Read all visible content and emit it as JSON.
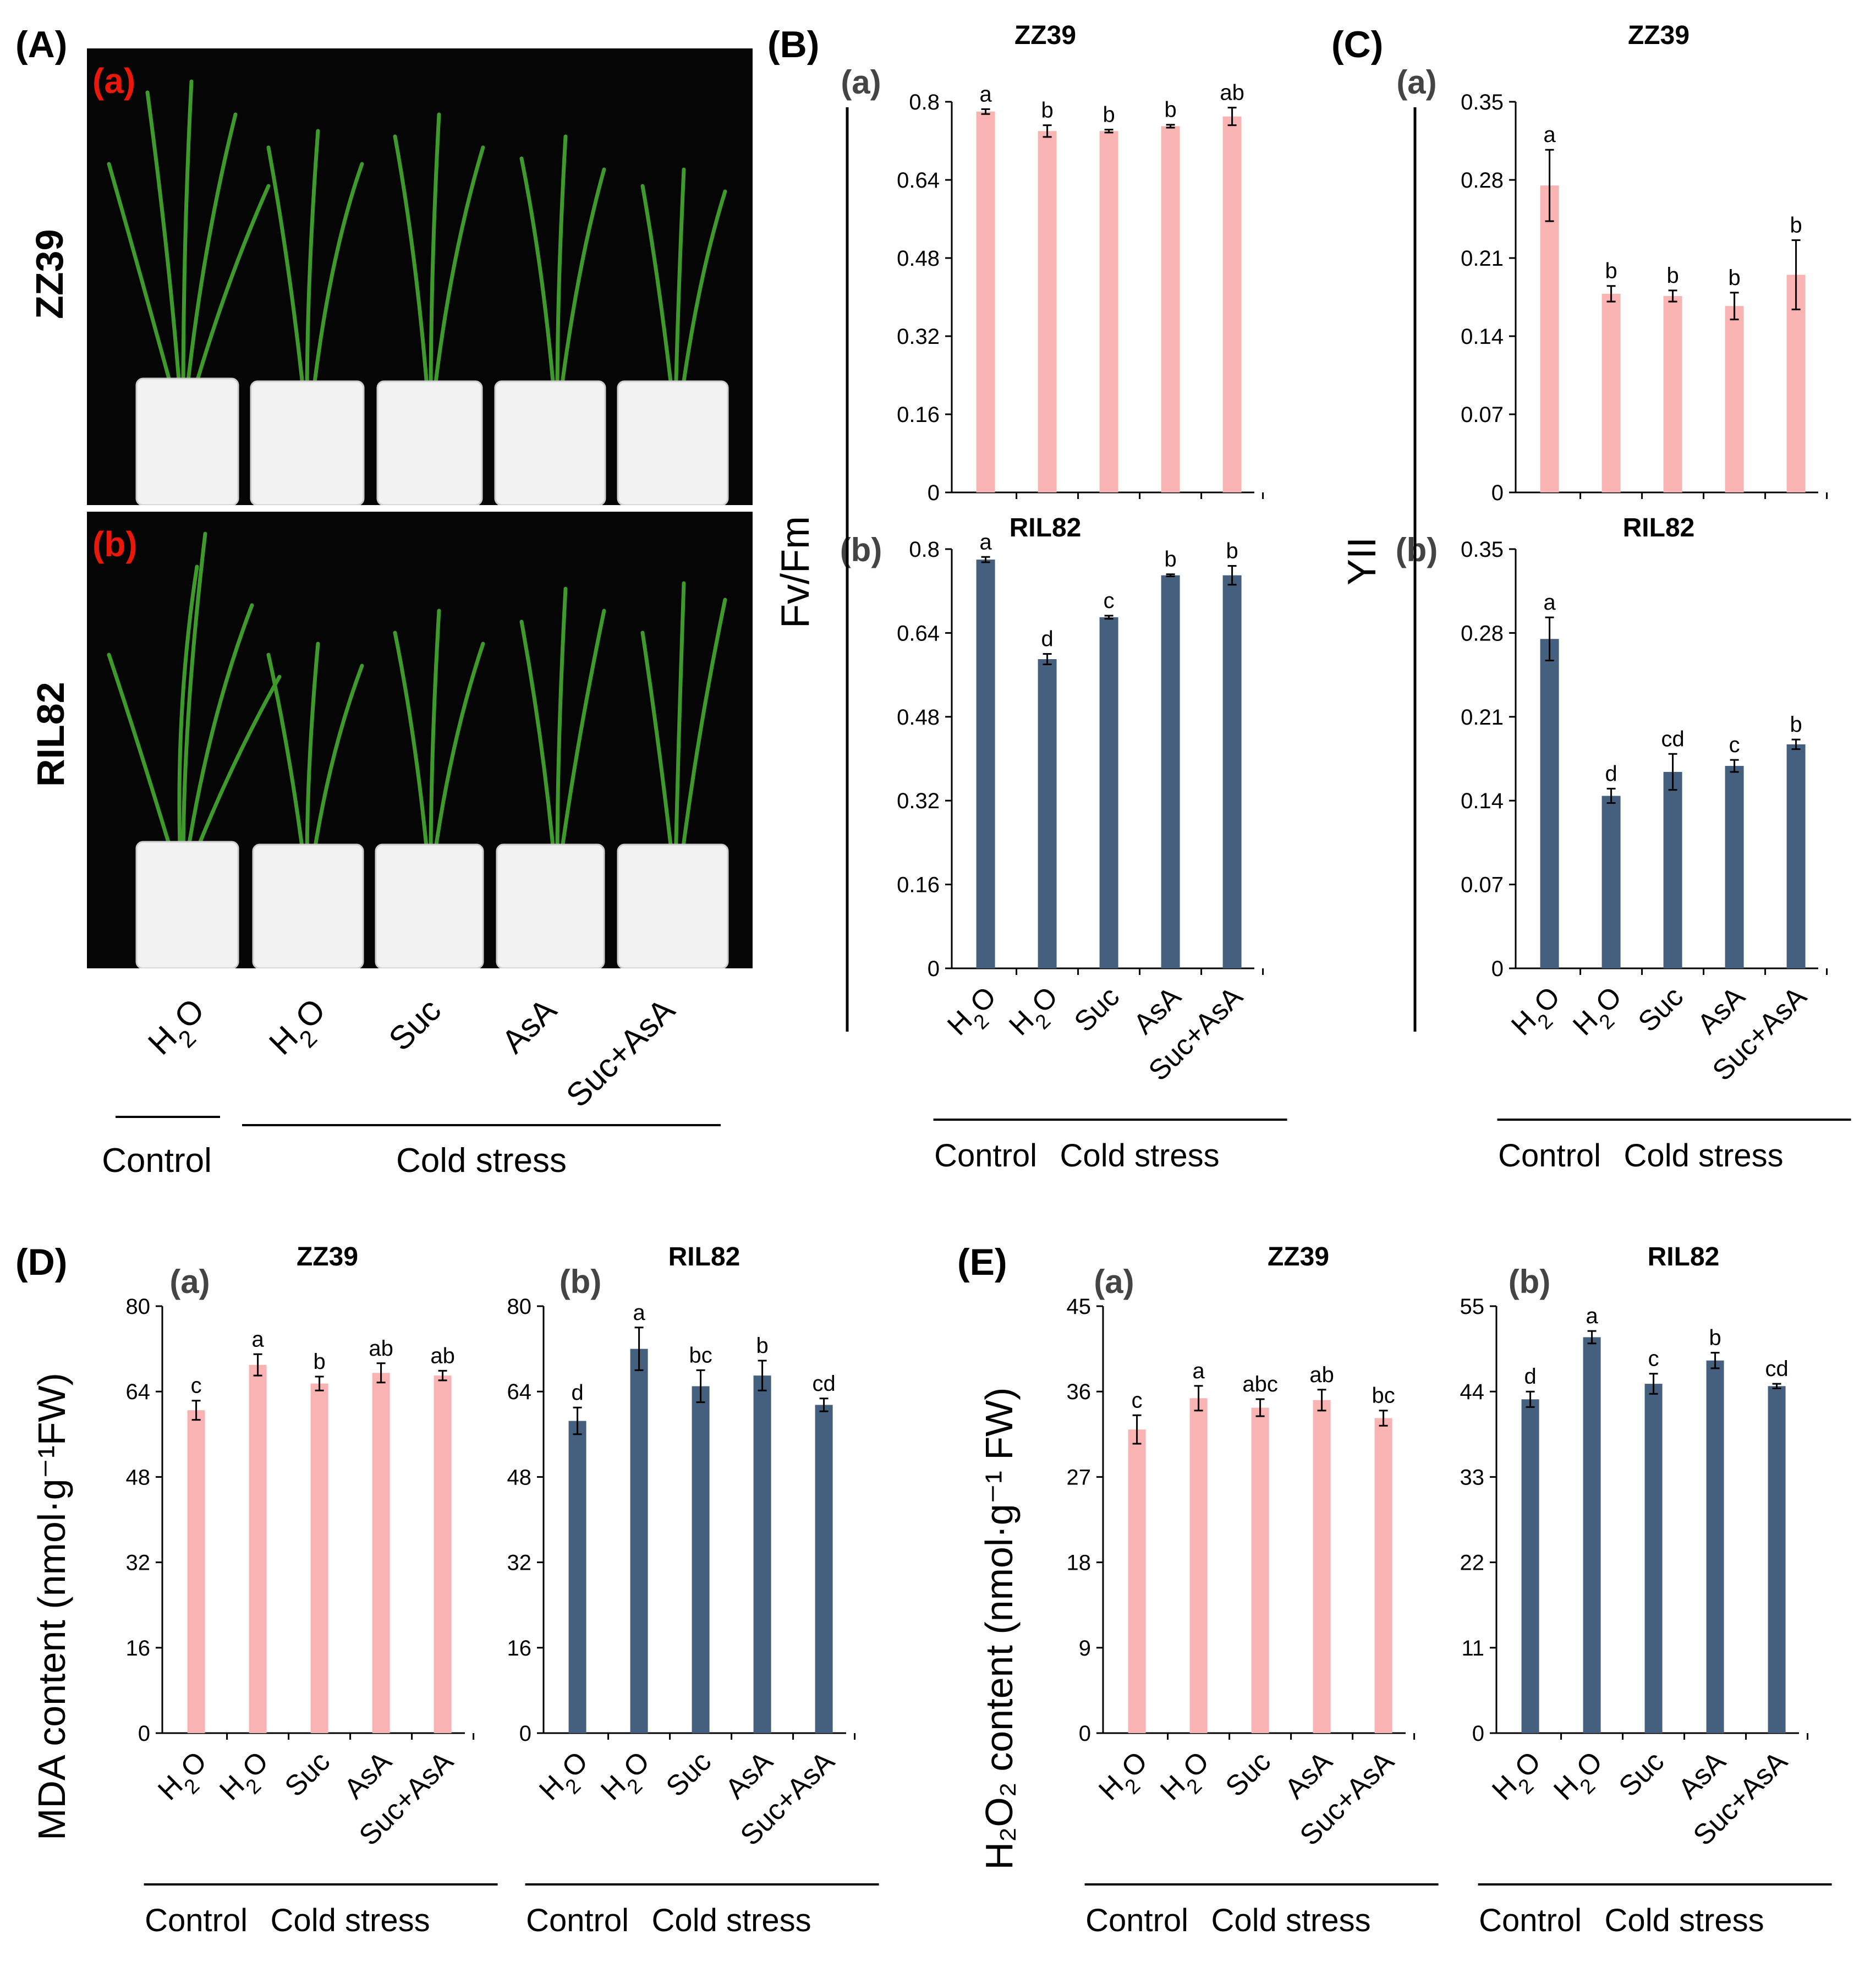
{
  "figure": {
    "panel_letters": [
      "(A)",
      "(B)",
      "(C)",
      "(D)",
      "(E)"
    ],
    "photo": {
      "tags": [
        "(a)",
        "(b)"
      ],
      "varieties": [
        "ZZ39",
        "RIL82"
      ],
      "treatments": [
        "H2O",
        "H2O",
        "Suc",
        "AsA",
        "Suc+AsA"
      ],
      "groups": [
        "Control",
        "Cold stress"
      ]
    },
    "colors": {
      "pink": "#F9B3B3",
      "blue": "#44607E",
      "red_tag": "#E8190B",
      "photo_bg": "#050505"
    }
  },
  "chart_data": [
    {
      "id": "B-a",
      "type": "bar",
      "panel": "(B)",
      "subpanel": "(a)",
      "title": "ZZ39",
      "ylabel": "Fv/Fm",
      "ylim": [
        0,
        0.8
      ],
      "yticks": [
        "0",
        "0.16",
        "0.32",
        "0.48",
        "0.64",
        "0.8"
      ],
      "categories": [
        "H2O",
        "H2O",
        "Suc",
        "AsA",
        "Suc+AsA"
      ],
      "values": [
        0.78,
        0.74,
        0.74,
        0.75,
        0.77
      ],
      "errors": [
        0.005,
        0.012,
        0.003,
        0.003,
        0.018
      ],
      "letters": [
        "a",
        "b",
        "b",
        "b",
        "ab"
      ],
      "color": "#F9B3B3",
      "groups": [
        "Control",
        "Cold stress"
      ]
    },
    {
      "id": "B-b",
      "type": "bar",
      "panel": "",
      "subpanel": "(b)",
      "title": "RIL82",
      "ylabel": "",
      "ylim": [
        0,
        0.8
      ],
      "yticks": [
        "0",
        "0.16",
        "0.32",
        "0.48",
        "0.64",
        "0.8"
      ],
      "categories": [
        "H2O",
        "H2O",
        "Suc",
        "AsA",
        "Suc+AsA"
      ],
      "values": [
        0.78,
        0.59,
        0.67,
        0.75,
        0.75
      ],
      "errors": [
        0.005,
        0.01,
        0.003,
        0.002,
        0.018
      ],
      "letters": [
        "a",
        "d",
        "c",
        "b",
        "b"
      ],
      "color": "#44607E",
      "groups": [
        "Control",
        "Cold stress"
      ]
    },
    {
      "id": "C-a",
      "type": "bar",
      "panel": "(C)",
      "subpanel": "(a)",
      "title": "ZZ39",
      "ylabel": "YII",
      "ylim": [
        0,
        0.35
      ],
      "yticks": [
        "0",
        "0.07",
        "0.14",
        "0.21",
        "0.28",
        "0.35"
      ],
      "categories": [
        "H2O",
        "H2O",
        "Suc",
        "AsA",
        "Suc+AsA"
      ],
      "values": [
        0.275,
        0.178,
        0.176,
        0.167,
        0.195
      ],
      "errors": [
        0.032,
        0.007,
        0.005,
        0.012,
        0.031
      ],
      "letters": [
        "a",
        "b",
        "b",
        "b",
        "b"
      ],
      "color": "#F9B3B3",
      "groups": [
        "Control",
        "Cold stress"
      ]
    },
    {
      "id": "C-b",
      "type": "bar",
      "panel": "",
      "subpanel": "(b)",
      "title": "RIL82",
      "ylabel": "",
      "ylim": [
        0,
        0.35
      ],
      "yticks": [
        "0",
        "0.07",
        "0.14",
        "0.21",
        "0.28",
        "0.35"
      ],
      "categories": [
        "H2O",
        "H2O",
        "Suc",
        "AsA",
        "Suc+AsA"
      ],
      "values": [
        0.275,
        0.144,
        0.164,
        0.169,
        0.187
      ],
      "errors": [
        0.018,
        0.006,
        0.015,
        0.005,
        0.004
      ],
      "letters": [
        "a",
        "d",
        "cd",
        "c",
        "b"
      ],
      "color": "#44607E",
      "groups": [
        "Control",
        "Cold stress"
      ]
    },
    {
      "id": "D-a",
      "type": "bar",
      "panel": "(D)",
      "subpanel": "(a)",
      "title": "ZZ39",
      "ylabel": "MDA content (nmol·g⁻¹FW)",
      "ylim": [
        0,
        80
      ],
      "yticks": [
        "0",
        "16",
        "32",
        "48",
        "64",
        "80"
      ],
      "categories": [
        "H2O",
        "H2O",
        "Suc",
        "AsA",
        "Suc+AsA"
      ],
      "values": [
        60.5,
        69.0,
        65.5,
        67.5,
        67.0
      ],
      "errors": [
        1.8,
        2.0,
        1.3,
        1.8,
        0.9
      ],
      "letters": [
        "c",
        "a",
        "b",
        "ab",
        "ab"
      ],
      "color": "#F9B3B3",
      "groups": [
        "Control",
        "Cold stress"
      ]
    },
    {
      "id": "D-b",
      "type": "bar",
      "panel": "",
      "subpanel": "(b)",
      "title": "RIL82",
      "ylabel": "",
      "ylim": [
        0,
        80
      ],
      "yticks": [
        "0",
        "16",
        "32",
        "48",
        "64",
        "80"
      ],
      "categories": [
        "H2O",
        "H2O",
        "Suc",
        "AsA",
        "Suc+AsA"
      ],
      "values": [
        58.5,
        72.0,
        65.0,
        67.0,
        61.5
      ],
      "errors": [
        2.5,
        4.0,
        3.0,
        2.8,
        1.2
      ],
      "letters": [
        "d",
        "a",
        "bc",
        "b",
        "cd"
      ],
      "color": "#44607E",
      "groups": [
        "Control",
        "Cold stress"
      ]
    },
    {
      "id": "E-a",
      "type": "bar",
      "panel": "(E)",
      "subpanel": "(a)",
      "title": "ZZ39",
      "ylabel": "H₂O₂ content (nmol·g⁻¹ FW)",
      "ylim": [
        0,
        45
      ],
      "yticks": [
        "0",
        "9",
        "18",
        "27",
        "36",
        "45"
      ],
      "categories": [
        "H2O",
        "H2O",
        "Suc",
        "AsA",
        "Suc+AsA"
      ],
      "values": [
        32.0,
        35.3,
        34.3,
        35.1,
        33.2
      ],
      "errors": [
        1.5,
        1.3,
        0.9,
        1.1,
        0.8
      ],
      "letters": [
        "c",
        "a",
        "abc",
        "ab",
        "bc"
      ],
      "color": "#F9B3B3",
      "groups": [
        "Control",
        "Cold stress"
      ]
    },
    {
      "id": "E-b",
      "type": "bar",
      "panel": "",
      "subpanel": "(b)",
      "title": "RIL82",
      "ylabel": "",
      "ylim": [
        0,
        55
      ],
      "yticks": [
        "0",
        "11",
        "22",
        "33",
        "44",
        "55"
      ],
      "categories": [
        "H2O",
        "H2O",
        "Suc",
        "AsA",
        "Suc+AsA"
      ],
      "values": [
        43.0,
        51.0,
        45.0,
        48.0,
        44.7
      ],
      "errors": [
        1.0,
        0.8,
        1.3,
        1.0,
        0.3
      ],
      "letters": [
        "d",
        "a",
        "c",
        "b",
        "cd"
      ],
      "color": "#44607E",
      "groups": [
        "Control",
        "Cold stress"
      ]
    }
  ]
}
